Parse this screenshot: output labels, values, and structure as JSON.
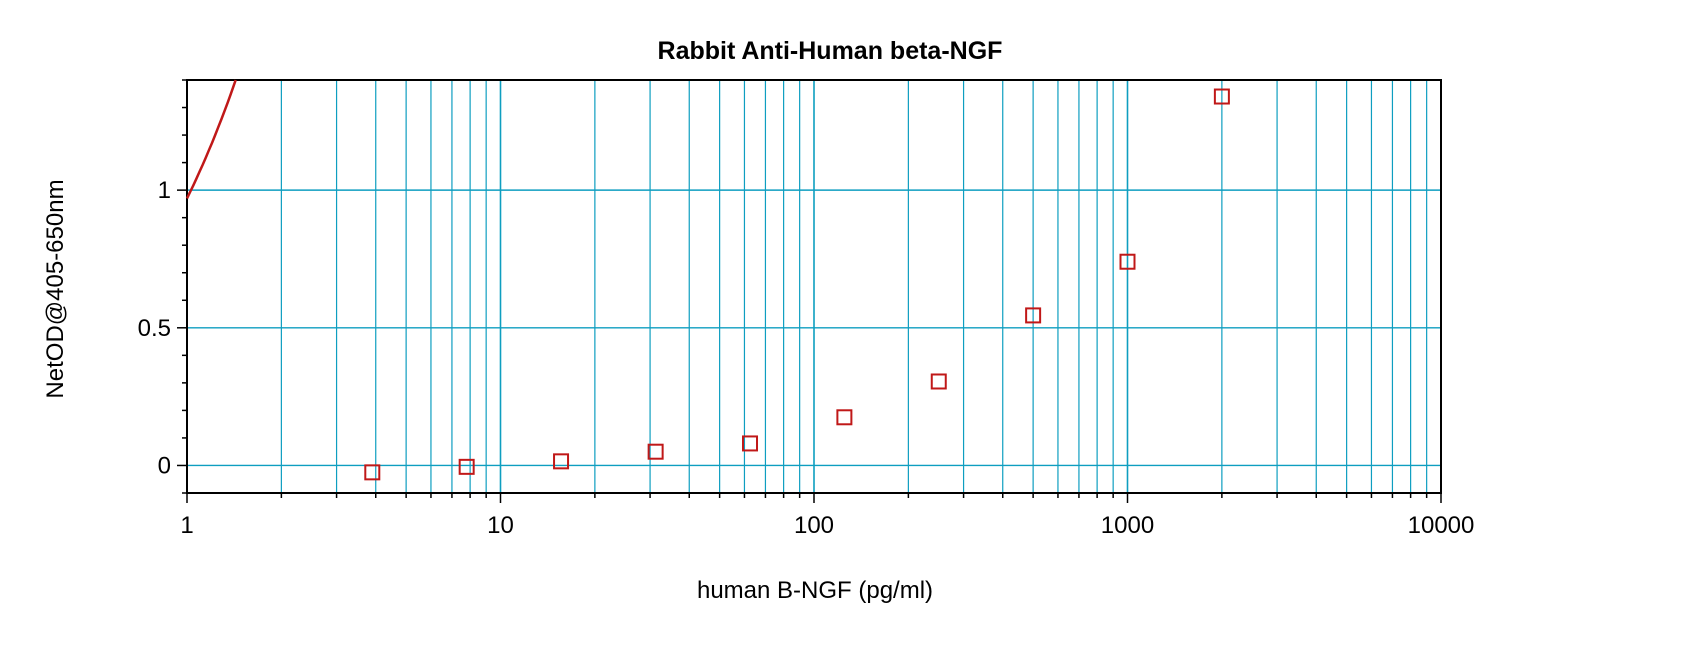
{
  "chart_data": {
    "type": "scatter",
    "title": "Rabbit Anti-Human beta-NGF",
    "xlabel": "human B-NGF (pg/ml)",
    "ylabel": "NetOD@405-650nm",
    "x_scale": "log",
    "xlim": [
      1,
      10000
    ],
    "ylim": [
      -0.1,
      1.4
    ],
    "x_ticks": [
      1,
      10,
      100,
      1000,
      10000
    ],
    "x_tick_labels": [
      "1",
      "10",
      "100",
      "1000",
      "10000"
    ],
    "y_ticks": [
      0,
      0.5,
      1
    ],
    "y_tick_labels": [
      "0",
      "0.5",
      "1"
    ],
    "grid": true,
    "series": [
      {
        "marker": "square",
        "x": [
          3.9,
          7.8,
          15.6,
          31.25,
          62.5,
          125,
          250,
          500,
          1000,
          2000
        ],
        "y": [
          -0.025,
          -0.005,
          0.015,
          0.05,
          0.08,
          0.175,
          0.305,
          0.545,
          0.74,
          1.34
        ]
      }
    ],
    "fit_curve": {
      "model": "4PL",
      "A": -0.03,
      "B": 1,
      "C": 1000000,
      "D": 1000000
    },
    "colors": {
      "grid": "#0e9ec0",
      "data": "#c01818",
      "axis": "#000000"
    }
  }
}
